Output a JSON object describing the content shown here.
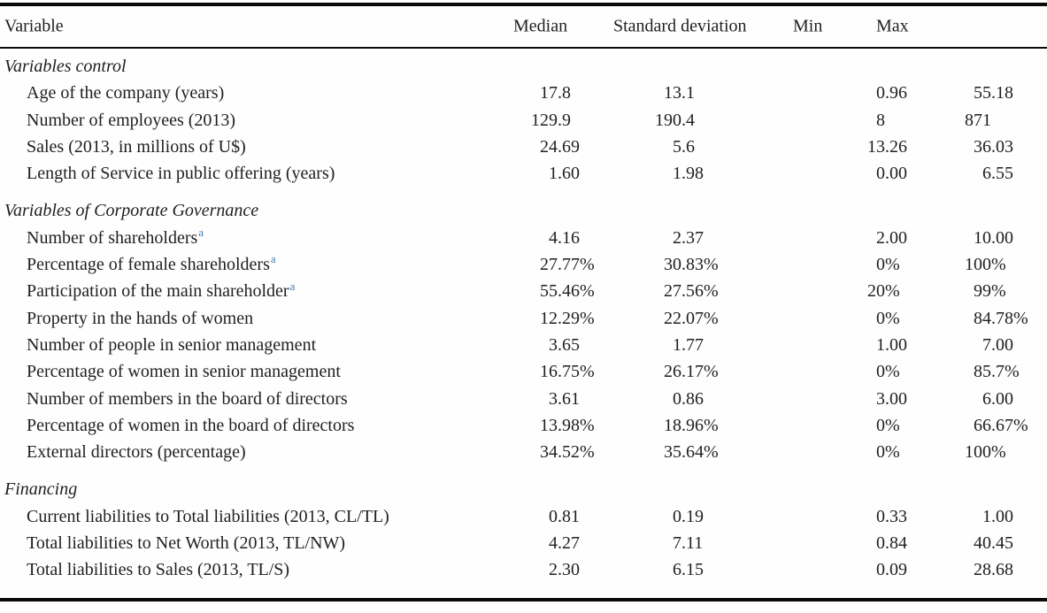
{
  "table": {
    "columns": [
      "Variable",
      "Median",
      "Standard deviation",
      "Min",
      "Max"
    ],
    "sections": [
      {
        "title": "Variables control",
        "rows": [
          {
            "label": "Age of the company (years)",
            "sup": "",
            "median": "17.8",
            "sd": "13.1",
            "min": "0.96",
            "max": "55.18"
          },
          {
            "label": "Number of employees (2013)",
            "sup": "",
            "median": "129.9",
            "sd": "190.4",
            "min": "8",
            "max": "871"
          },
          {
            "label": "Sales (2013, in millions of U$)",
            "sup": "",
            "median": "24.69",
            "sd": "5.6",
            "min": "13.26",
            "max": "36.03"
          },
          {
            "label": "Length of Service in public offering (years)",
            "sup": "",
            "median": "1.60",
            "sd": "1.98",
            "min": "0.00",
            "max": "6.55"
          }
        ]
      },
      {
        "title": "Variables of Corporate Governance",
        "rows": [
          {
            "label": "Number of shareholders",
            "sup": "a",
            "median": "4.16",
            "sd": "2.37",
            "min": "2.00",
            "max": "10.00"
          },
          {
            "label": "Percentage of female shareholders",
            "sup": "a",
            "median": "27.77%",
            "sd": "30.83%",
            "min": "0%",
            "max": "100%"
          },
          {
            "label": "Participation of the main shareholder",
            "sup": "a",
            "median": "55.46%",
            "sd": "27.56%",
            "min": "20%",
            "max": "99%"
          },
          {
            "label": "Property in the hands of women",
            "sup": "",
            "median": "12.29%",
            "sd": "22.07%",
            "min": "0%",
            "max": "84.78%"
          },
          {
            "label": "Number of people in senior management",
            "sup": "",
            "median": "3.65",
            "sd": "1.77",
            "min": "1.00",
            "max": "7.00"
          },
          {
            "label": "Percentage of women in senior management",
            "sup": "",
            "median": "16.75%",
            "sd": "26.17%",
            "min": "0%",
            "max": "85.7%"
          },
          {
            "label": "Number of members in the board of directors",
            "sup": "",
            "median": "3.61",
            "sd": "0.86",
            "min": "3.00",
            "max": "6.00"
          },
          {
            "label": "Percentage of women in the board of directors",
            "sup": "",
            "median": "13.98%",
            "sd": "18.96%",
            "min": "0%",
            "max": "66.67%"
          },
          {
            "label": "External directors (percentage)",
            "sup": "",
            "median": "34.52%",
            "sd": "35.64%",
            "min": "0%",
            "max": "100%"
          }
        ]
      },
      {
        "title": "Financing",
        "rows": [
          {
            "label": "Current liabilities to Total liabilities (2013, CL/TL)",
            "sup": "",
            "median": "0.81",
            "sd": "0.19",
            "min": "0.33",
            "max": "1.00"
          },
          {
            "label": "Total liabilities to Net Worth (2013, TL/NW)",
            "sup": "",
            "median": "4.27",
            "sd": "7.11",
            "min": "0.84",
            "max": "40.45"
          },
          {
            "label": "Total liabilities to Sales (2013, TL/S)",
            "sup": "",
            "median": "2.30",
            "sd": "6.15",
            "min": "0.09",
            "max": "28.68"
          }
        ]
      }
    ]
  },
  "colors": {
    "text": "#1f1f1f",
    "rule": "#0a0a0a",
    "footnote_marker": "#3f7db8"
  }
}
